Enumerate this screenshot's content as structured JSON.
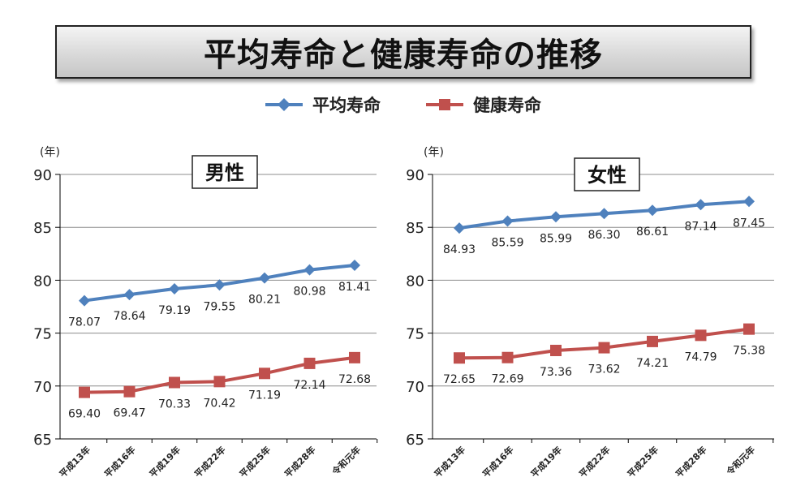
{
  "title": "平均寿命と健康寿命の推移",
  "legend": [
    {
      "name": "平均寿命",
      "color": "#4F81BD",
      "marker": "diamond"
    },
    {
      "name": "健康寿命",
      "color": "#C0504D",
      "marker": "square"
    }
  ],
  "chart_data": [
    {
      "type": "line",
      "title": "男性",
      "ylabel": "(年)",
      "categories": [
        "平成13年",
        "平成16年",
        "平成19年",
        "平成22年",
        "平成25年",
        "平成28年",
        "令和元年"
      ],
      "ylim": [
        65,
        90
      ],
      "yticks": [
        65,
        70,
        75,
        80,
        85,
        90
      ],
      "series": [
        {
          "name": "平均寿命",
          "color": "#4F81BD",
          "marker": "diamond",
          "values": [
            78.07,
            78.64,
            79.19,
            79.55,
            80.21,
            80.98,
            81.41
          ],
          "labels": [
            "78.07",
            "78.64",
            "79.19",
            "79.55",
            "80.21",
            "80.98",
            "81.41"
          ]
        },
        {
          "name": "健康寿命",
          "color": "#C0504D",
          "marker": "square",
          "values": [
            69.4,
            69.47,
            70.33,
            70.42,
            71.19,
            72.14,
            72.68
          ],
          "labels": [
            "69.40",
            "69.47",
            "70.33",
            "70.42",
            "71.19",
            "72.14",
            "72.68"
          ]
        }
      ]
    },
    {
      "type": "line",
      "title": "女性",
      "ylabel": "(年)",
      "categories": [
        "平成13年",
        "平成16年",
        "平成19年",
        "平成22年",
        "平成25年",
        "平成28年",
        "令和元年"
      ],
      "ylim": [
        65,
        90
      ],
      "yticks": [
        65,
        70,
        75,
        80,
        85,
        90
      ],
      "series": [
        {
          "name": "平均寿命",
          "color": "#4F81BD",
          "marker": "diamond",
          "values": [
            84.93,
            85.59,
            85.99,
            86.3,
            86.61,
            87.14,
            87.45
          ],
          "labels": [
            "84.93",
            "85.59",
            "85.99",
            "86.30",
            "86.61",
            "87.14",
            "87.45"
          ]
        },
        {
          "name": "健康寿命",
          "color": "#C0504D",
          "marker": "square",
          "values": [
            72.65,
            72.69,
            73.36,
            73.62,
            74.21,
            74.79,
            75.38
          ],
          "labels": [
            "72.65",
            "72.69",
            "73.36",
            "73.62",
            "74.21",
            "74.79",
            "75.38"
          ]
        }
      ]
    }
  ]
}
